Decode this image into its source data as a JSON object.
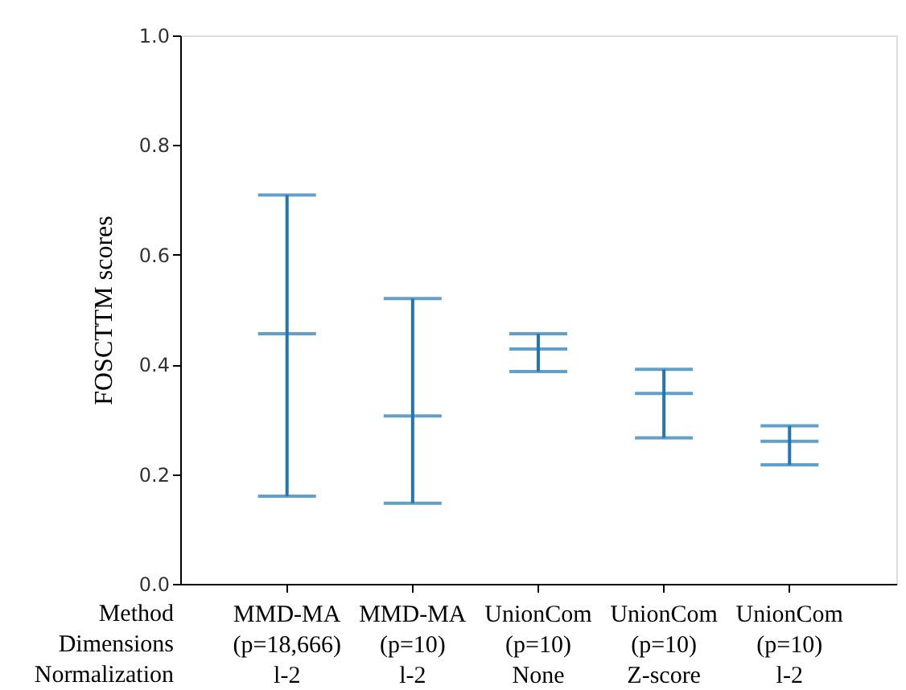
{
  "chart_data": {
    "type": "box",
    "ylabel": "FOSCTTM scores",
    "categories": [
      "MMD-MA\n(p=18,666)\nl-2",
      "MMD-MA\n(p=10)\nl-2",
      "UnionCom\n(p=10)\nNone",
      "UnionCom\n(p=10)\nZ-score",
      "UnionCom\n(p=10)\nl-2"
    ],
    "boxes": [
      {
        "low": 0.16,
        "q1": 0.456,
        "median": 0.456,
        "q3": 0.456,
        "high": 0.709
      },
      {
        "low": 0.147,
        "q1": 0.306,
        "median": 0.306,
        "q3": 0.306,
        "high": 0.52
      },
      {
        "low": 0.387,
        "q1": 0.428,
        "median": 0.428,
        "q3": 0.428,
        "high": 0.456
      },
      {
        "low": 0.266,
        "q1": 0.347,
        "median": 0.347,
        "q3": 0.347,
        "high": 0.391
      },
      {
        "low": 0.217,
        "q1": 0.26,
        "median": 0.26,
        "q3": 0.26,
        "high": 0.288
      }
    ],
    "color": "#1f77b4",
    "ylim": [
      0.0,
      1.0
    ],
    "yticks": [
      {
        "value": 0.0,
        "label": "0.0"
      },
      {
        "value": 0.2,
        "label": "0.2"
      },
      {
        "value": 0.4,
        "label": "0.4"
      },
      {
        "value": 0.6,
        "label": "0.6"
      },
      {
        "value": 0.8,
        "label": "0.8"
      },
      {
        "value": 1.0,
        "label": "1.0"
      }
    ],
    "grid": false,
    "annotations": [
      "Method",
      "Dimensions",
      "Normalization"
    ]
  }
}
